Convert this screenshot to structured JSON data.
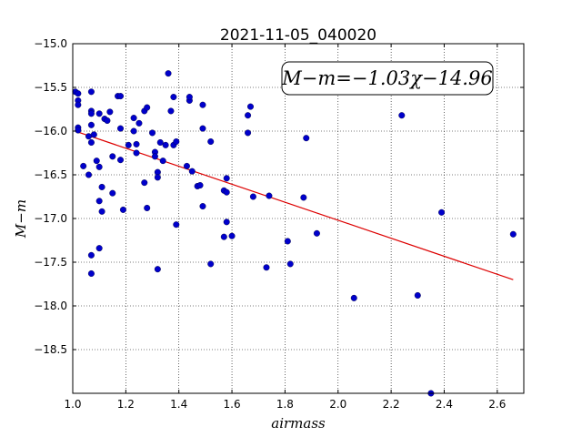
{
  "chart_data": {
    "type": "scatter",
    "title": "2021-11-05_040020",
    "xlabel": "airmass",
    "ylabel": "M−m",
    "xlim": [
      1.0,
      2.7
    ],
    "ylim": [
      -15.0,
      -19.0
    ],
    "y_inverted": true,
    "grid": true,
    "x_ticks": [
      1.0,
      1.2,
      1.4,
      1.6,
      1.8,
      2.0,
      2.2,
      2.4,
      2.6
    ],
    "x_tick_labels": [
      "1.0",
      "1.2",
      "1.4",
      "1.6",
      "1.8",
      "2.0",
      "2.2",
      "2.4",
      "2.6"
    ],
    "y_ticks": [
      -15.0,
      -15.5,
      -16.0,
      -16.5,
      -17.0,
      -17.5,
      -18.0,
      -18.5
    ],
    "y_tick_labels": [
      "−15.0",
      "−15.5",
      "−16.0",
      "−16.5",
      "−17.0",
      "−17.5",
      "−18.0",
      "−18.5"
    ],
    "annotation": "M−m=−1.03χ−14.96",
    "point_color": "#0000cc",
    "fit_color": "#dd0000",
    "fit": {
      "slope": -1.03,
      "intercept": -14.96,
      "x_range": [
        1.02,
        2.66
      ]
    },
    "points": [
      [
        1.01,
        -15.55
      ],
      [
        1.02,
        -15.57
      ],
      [
        1.02,
        -15.65
      ],
      [
        1.02,
        -15.7
      ],
      [
        1.02,
        -15.96
      ],
      [
        1.02,
        -15.99
      ],
      [
        1.04,
        -16.4
      ],
      [
        1.06,
        -16.5
      ],
      [
        1.06,
        -16.06
      ],
      [
        1.07,
        -15.55
      ],
      [
        1.07,
        -15.77
      ],
      [
        1.07,
        -15.8
      ],
      [
        1.07,
        -15.93
      ],
      [
        1.07,
        -16.13
      ],
      [
        1.08,
        -16.04
      ],
      [
        1.07,
        -17.42
      ],
      [
        1.07,
        -17.63
      ],
      [
        1.09,
        -16.34
      ],
      [
        1.1,
        -16.41
      ],
      [
        1.1,
        -15.8
      ],
      [
        1.1,
        -17.34
      ],
      [
        1.1,
        -16.8
      ],
      [
        1.11,
        -16.64
      ],
      [
        1.11,
        -16.92
      ],
      [
        1.12,
        -15.86
      ],
      [
        1.13,
        -15.88
      ],
      [
        1.14,
        -15.78
      ],
      [
        1.15,
        -16.29
      ],
      [
        1.15,
        -16.71
      ],
      [
        1.17,
        -15.6
      ],
      [
        1.18,
        -15.6
      ],
      [
        1.18,
        -15.97
      ],
      [
        1.18,
        -16.33
      ],
      [
        1.19,
        -16.9
      ],
      [
        1.21,
        -16.16
      ],
      [
        1.23,
        -16.0
      ],
      [
        1.23,
        -15.85
      ],
      [
        1.24,
        -16.25
      ],
      [
        1.24,
        -16.15
      ],
      [
        1.25,
        -15.91
      ],
      [
        1.27,
        -16.59
      ],
      [
        1.27,
        -15.77
      ],
      [
        1.28,
        -15.73
      ],
      [
        1.28,
        -16.88
      ],
      [
        1.3,
        -16.02
      ],
      [
        1.31,
        -16.24
      ],
      [
        1.31,
        -16.29
      ],
      [
        1.32,
        -16.47
      ],
      [
        1.32,
        -16.53
      ],
      [
        1.32,
        -17.58
      ],
      [
        1.33,
        -16.13
      ],
      [
        1.34,
        -16.34
      ],
      [
        1.35,
        -16.16
      ],
      [
        1.36,
        -15.34
      ],
      [
        1.37,
        -15.77
      ],
      [
        1.38,
        -15.61
      ],
      [
        1.38,
        -16.16
      ],
      [
        1.39,
        -16.12
      ],
      [
        1.39,
        -17.07
      ],
      [
        1.43,
        -16.4
      ],
      [
        1.44,
        -15.65
      ],
      [
        1.44,
        -15.61
      ],
      [
        1.45,
        -16.46
      ],
      [
        1.47,
        -16.63
      ],
      [
        1.48,
        -16.62
      ],
      [
        1.49,
        -16.86
      ],
      [
        1.49,
        -15.97
      ],
      [
        1.49,
        -15.7
      ],
      [
        1.52,
        -16.12
      ],
      [
        1.52,
        -17.52
      ],
      [
        1.57,
        -16.68
      ],
      [
        1.57,
        -17.21
      ],
      [
        1.58,
        -17.04
      ],
      [
        1.58,
        -16.54
      ],
      [
        1.58,
        -16.7
      ],
      [
        1.6,
        -17.2
      ],
      [
        1.66,
        -15.82
      ],
      [
        1.66,
        -16.02
      ],
      [
        1.67,
        -15.72
      ],
      [
        1.68,
        -16.75
      ],
      [
        1.73,
        -17.56
      ],
      [
        1.74,
        -16.74
      ],
      [
        1.81,
        -17.26
      ],
      [
        1.82,
        -17.52
      ],
      [
        1.87,
        -16.76
      ],
      [
        1.88,
        -16.08
      ],
      [
        1.92,
        -17.17
      ],
      [
        2.06,
        -17.91
      ],
      [
        2.24,
        -15.82
      ],
      [
        2.3,
        -17.88
      ],
      [
        2.35,
        -19.0
      ],
      [
        2.39,
        -16.93
      ],
      [
        2.66,
        -17.18
      ]
    ]
  }
}
